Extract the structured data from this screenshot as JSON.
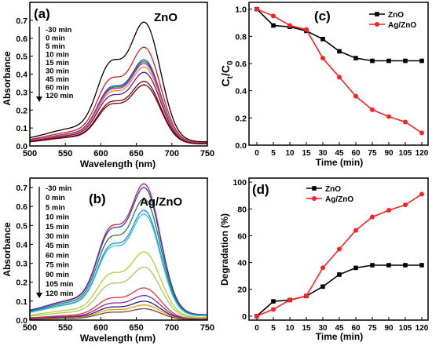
{
  "chart_data": [
    {
      "panel_label": "(a)",
      "type": "line",
      "title": "ZnO",
      "xlabel": "Wavelength (nm)",
      "ylabel": "Absorbance",
      "xlim": [
        500,
        750
      ],
      "ylim": [
        0,
        0.8
      ],
      "xticks": [
        "500",
        "550",
        "600",
        "650",
        "700",
        "750"
      ],
      "yticks": [
        "0.0",
        "0.1",
        "0.2",
        "0.3",
        "0.4",
        "0.5",
        "0.6",
        "0.7"
      ],
      "xtick_values": [
        500,
        550,
        600,
        650,
        700,
        750
      ],
      "ytick_values": [
        0.0,
        0.1,
        0.2,
        0.3,
        0.4,
        0.5,
        0.6,
        0.7
      ],
      "grid": false,
      "legend_position": "left",
      "legend_arrow": "down",
      "series_names": [
        "-30 min",
        "0 min",
        "5 min",
        "10 min",
        "15 min",
        "30 min",
        "45 min",
        "60 min",
        "120 min"
      ],
      "colors": [
        "#000000",
        "#e31a1c",
        "#1f3fff",
        "#00a000",
        "#ff00ff",
        "#cfa000",
        "#6a0dad",
        "#7a0000",
        "#7a0000"
      ],
      "peaks": [
        0.69,
        0.55,
        0.48,
        0.47,
        0.46,
        0.44,
        0.41,
        0.36,
        0.34
      ],
      "shape": {
        "peak_nm": 662,
        "shoulder_nm": 612,
        "shoulder_ratio": 0.53,
        "base_fraction": 0.033
      }
    },
    {
      "panel_label": "(b)",
      "type": "line",
      "title": "Ag/ZnO",
      "xlabel": "Wavelength (nm)",
      "ylabel": "Absorbance",
      "xlim": [
        500,
        750
      ],
      "ylim": [
        0,
        0.75
      ],
      "xticks": [
        "500",
        "550",
        "600",
        "650",
        "700",
        "750"
      ],
      "yticks": [
        "0.0",
        "0.1",
        "0.2",
        "0.3",
        "0.4",
        "0.5",
        "0.6",
        "0.7"
      ],
      "xtick_values": [
        500,
        550,
        600,
        650,
        700,
        750
      ],
      "ytick_values": [
        0.0,
        0.1,
        0.2,
        0.3,
        0.4,
        0.5,
        0.6,
        0.7
      ],
      "grid": false,
      "legend_position": "left",
      "legend_arrow": "down",
      "series_names": [
        "-30 min",
        "0 min",
        "5 min",
        "10 min",
        "15 min",
        "30 min",
        "45 min",
        "60 min",
        "75 min",
        "90 min",
        "105 min",
        "120 min"
      ],
      "colors": [
        "#e31a1c",
        "#1f3fff",
        "#2e7d32",
        "#1e88e5",
        "#26c6da",
        "#c0ca33",
        "#9ccc65",
        "#e53935",
        "#8e24aa",
        "#1a237e",
        "#ff9800",
        "#6d4c41"
      ],
      "peaks": [
        0.72,
        0.7,
        0.64,
        0.58,
        0.56,
        0.36,
        0.28,
        0.17,
        0.13,
        0.1,
        0.08,
        0.06
      ],
      "shape": {
        "peak_nm": 662,
        "shoulder_nm": 612,
        "shoulder_ratio": 0.53,
        "base_fraction": 0.04
      }
    },
    {
      "panel_label": "(c)",
      "type": "line",
      "xlabel": "Time (min)",
      "ylabel_main": "C",
      "ylabel_sub1": "t",
      "ylabel_slash": "/C",
      "ylabel_sub2": "0",
      "categories": [
        "0",
        "5",
        "10",
        "15",
        "30",
        "45",
        "60",
        "75",
        "90",
        "105",
        "120"
      ],
      "yticks": [
        "0.0",
        "0.2",
        "0.4",
        "0.6",
        "0.8",
        "1.0"
      ],
      "ytick_values": [
        0.0,
        0.2,
        0.4,
        0.6,
        0.8,
        1.0
      ],
      "ylim": [
        0,
        1.05
      ],
      "grid": false,
      "legend_position": "top-right",
      "series": [
        {
          "name": "ZnO",
          "color": "#000000",
          "marker": "square",
          "values": [
            1.0,
            0.88,
            0.87,
            0.84,
            0.78,
            0.69,
            0.64,
            0.62,
            0.62,
            0.62,
            0.62
          ]
        },
        {
          "name": "Ag/ZnO",
          "color": "#ff2020",
          "marker": "circle",
          "values": [
            1.0,
            0.95,
            0.88,
            0.85,
            0.64,
            0.5,
            0.36,
            0.26,
            0.21,
            0.17,
            0.09
          ]
        }
      ]
    },
    {
      "panel_label": "(d)",
      "type": "line",
      "xlabel": "Time (min)",
      "ylabel": "Degradation (%)",
      "categories": [
        "0",
        "5",
        "10",
        "15",
        "30",
        "45",
        "60",
        "75",
        "90",
        "105",
        "120"
      ],
      "yticks": [
        "0",
        "20",
        "40",
        "60",
        "80",
        "100"
      ],
      "ytick_values": [
        0,
        20,
        40,
        60,
        80,
        100
      ],
      "ylim": [
        -3,
        103
      ],
      "grid": false,
      "legend_position": "top-left",
      "series": [
        {
          "name": "ZnO",
          "color": "#000000",
          "marker": "square",
          "values": [
            0,
            11,
            12,
            15,
            22,
            31,
            36,
            38,
            38,
            38,
            38
          ]
        },
        {
          "name": "Ag/ZnO",
          "color": "#ff2020",
          "marker": "circle",
          "values": [
            0,
            5,
            12,
            15,
            36,
            50,
            64,
            74,
            79,
            83,
            91
          ]
        }
      ]
    }
  ]
}
